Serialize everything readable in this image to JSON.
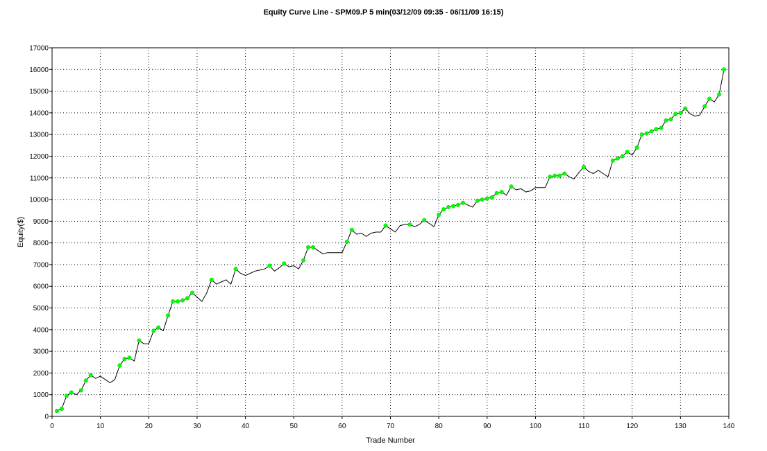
{
  "chart_data": {
    "type": "line",
    "title": "Equity Curve Line - SPM09.P 5 min(03/12/09 09:35 - 06/11/09 16:15)",
    "xlabel": "Trade Number",
    "ylabel": "Equity($)",
    "xlim": [
      0,
      140
    ],
    "ylim": [
      0,
      17000
    ],
    "xticks": [
      0,
      10,
      20,
      30,
      40,
      50,
      60,
      70,
      80,
      90,
      100,
      110,
      120,
      130,
      140
    ],
    "yticks": [
      0,
      1000,
      2000,
      3000,
      4000,
      5000,
      6000,
      7000,
      8000,
      9000,
      10000,
      11000,
      12000,
      13000,
      14000,
      15000,
      16000,
      17000
    ],
    "grid": true,
    "line_color": "#000000",
    "marker_color": "#00ff00",
    "series": [
      {
        "x": [
          1,
          2,
          3,
          4,
          5,
          6,
          7,
          8,
          9,
          10,
          11,
          12,
          13,
          14,
          15,
          16,
          17,
          18,
          19,
          20,
          21,
          22,
          23,
          24,
          25,
          26,
          27,
          28,
          29,
          30,
          31,
          32,
          33,
          34,
          35,
          36,
          37,
          38,
          39,
          40,
          41,
          42,
          43,
          44,
          45,
          46,
          47,
          48,
          49,
          50,
          51,
          52,
          53,
          54,
          55,
          56,
          57,
          58,
          59,
          60,
          61,
          62,
          63,
          64,
          65,
          66,
          67,
          68,
          69,
          70,
          71,
          72,
          73,
          74,
          75,
          76,
          77,
          78,
          79,
          80,
          81,
          82,
          83,
          84,
          85,
          86,
          87,
          88,
          89,
          90,
          91,
          92,
          93,
          94,
          95,
          96,
          97,
          98,
          99,
          100,
          101,
          102,
          103,
          104,
          105,
          106,
          107,
          108,
          109,
          110,
          111,
          112,
          113,
          114,
          115,
          116,
          117,
          118,
          119,
          120,
          121,
          122,
          123,
          124,
          125,
          126,
          127,
          128,
          129,
          130,
          131,
          132,
          133,
          134,
          135,
          136,
          137,
          138,
          139
        ],
        "y": [
          250,
          350,
          950,
          1100,
          1000,
          1200,
          1650,
          1900,
          1750,
          1850,
          1700,
          1550,
          1700,
          2350,
          2650,
          2700,
          2550,
          3500,
          3350,
          3350,
          3950,
          4100,
          3950,
          4650,
          5300,
          5300,
          5350,
          5450,
          5700,
          5500,
          5300,
          5700,
          6300,
          6100,
          6200,
          6300,
          6100,
          6800,
          6600,
          6500,
          6600,
          6700,
          6750,
          6800,
          6950,
          6700,
          6850,
          7050,
          6900,
          6950,
          6800,
          7200,
          7800,
          7800,
          7650,
          7500,
          7550,
          7550,
          7550,
          7550,
          8050,
          8600,
          8400,
          8450,
          8300,
          8450,
          8500,
          8500,
          8800,
          8650,
          8500,
          8800,
          8850,
          8850,
          8750,
          8850,
          9050,
          8900,
          8750,
          9300,
          9550,
          9650,
          9700,
          9750,
          9850,
          9750,
          9650,
          9950,
          10000,
          10050,
          10100,
          10300,
          10350,
          10200,
          10600,
          10450,
          10500,
          10350,
          10400,
          10550,
          10550,
          10550,
          11050,
          11100,
          11100,
          11200,
          11050,
          10950,
          11250,
          11500,
          11300,
          11200,
          11350,
          11200,
          11050,
          11800,
          11900,
          12000,
          12200,
          12050,
          12400,
          13000,
          13050,
          13150,
          13250,
          13300,
          13650,
          13700,
          13950,
          14000,
          14200,
          13950,
          13850,
          13900,
          14300,
          14650,
          14500,
          14850,
          16000
        ],
        "markers": [
          1,
          2,
          3,
          4,
          6,
          7,
          8,
          14,
          15,
          16,
          18,
          21,
          22,
          24,
          25,
          26,
          27,
          28,
          29,
          33,
          38,
          45,
          48,
          52,
          53,
          54,
          61,
          62,
          69,
          74,
          77,
          80,
          81,
          82,
          83,
          84,
          85,
          88,
          89,
          90,
          91,
          92,
          93,
          95,
          103,
          104,
          105,
          106,
          110,
          116,
          117,
          118,
          119,
          121,
          122,
          123,
          124,
          125,
          126,
          127,
          128,
          129,
          130,
          131,
          135,
          136,
          138,
          139
        ]
      }
    ]
  }
}
